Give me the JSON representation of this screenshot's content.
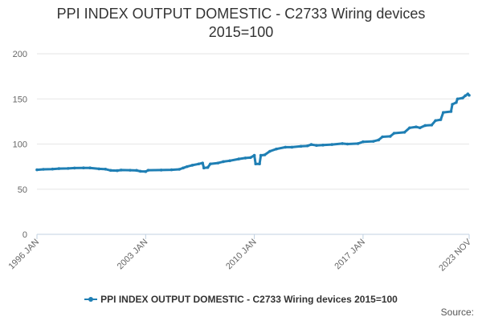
{
  "chart_data": {
    "type": "line",
    "title": "PPI INDEX OUTPUT DOMESTIC - C2733 Wiring devices",
    "subtitle": "2015=100",
    "xlabel": "",
    "ylabel": "",
    "ylim": [
      0,
      200
    ],
    "yticks": [
      0,
      50,
      100,
      150,
      200
    ],
    "xlim": [
      "1996-01",
      "2023-11"
    ],
    "xticks": [
      "1996 JAN",
      "2003 JAN",
      "2010 JAN",
      "2017 JAN",
      "2023 NOV"
    ],
    "grid": true,
    "legend_position": "bottom",
    "series": [
      {
        "name": "PPI INDEX OUTPUT DOMESTIC - C2733 Wiring devices 2015=100",
        "color": "#1f7fb4",
        "points": [
          [
            "1996-01",
            71.5
          ],
          [
            "1996-06",
            72.0
          ],
          [
            "1997-01",
            72.3
          ],
          [
            "1997-06",
            72.8
          ],
          [
            "1998-01",
            73.0
          ],
          [
            "1998-06",
            73.4
          ],
          [
            "1999-01",
            73.6
          ],
          [
            "1999-06",
            73.6
          ],
          [
            "2000-01",
            72.5
          ],
          [
            "2000-06",
            72.2
          ],
          [
            "2000-10",
            70.8
          ],
          [
            "2001-03",
            70.6
          ],
          [
            "2001-06",
            71.2
          ],
          [
            "2002-01",
            71.0
          ],
          [
            "2002-06",
            70.8
          ],
          [
            "2002-09",
            69.8
          ],
          [
            "2003-01",
            69.5
          ],
          [
            "2003-03",
            71.0
          ],
          [
            "2004-01",
            71.2
          ],
          [
            "2004-09",
            71.5
          ],
          [
            "2005-03",
            72.0
          ],
          [
            "2005-06",
            73.5
          ],
          [
            "2005-09",
            75.0
          ],
          [
            "2006-01",
            76.5
          ],
          [
            "2006-06",
            78.0
          ],
          [
            "2006-09",
            79.0
          ],
          [
            "2006-10",
            73.5
          ],
          [
            "2007-01",
            74.0
          ],
          [
            "2007-03",
            78.0
          ],
          [
            "2007-09",
            79.0
          ],
          [
            "2008-01",
            80.5
          ],
          [
            "2008-06",
            81.5
          ],
          [
            "2009-01",
            83.5
          ],
          [
            "2009-06",
            84.5
          ],
          [
            "2009-10",
            85.0
          ],
          [
            "2010-01",
            87.5
          ],
          [
            "2010-02",
            78.0
          ],
          [
            "2010-05",
            78.0
          ],
          [
            "2010-06",
            87.5
          ],
          [
            "2010-09",
            88.0
          ],
          [
            "2011-01",
            92.0
          ],
          [
            "2011-06",
            94.5
          ],
          [
            "2012-01",
            96.5
          ],
          [
            "2012-06",
            96.5
          ],
          [
            "2013-01",
            97.5
          ],
          [
            "2013-06",
            98.0
          ],
          [
            "2013-09",
            99.5
          ],
          [
            "2014-01",
            98.5
          ],
          [
            "2014-06",
            98.8
          ],
          [
            "2015-01",
            99.5
          ],
          [
            "2015-09",
            100.5
          ],
          [
            "2016-01",
            100.0
          ],
          [
            "2016-09",
            100.5
          ],
          [
            "2017-01",
            102.5
          ],
          [
            "2017-09",
            103.0
          ],
          [
            "2018-01",
            104.5
          ],
          [
            "2018-04",
            108.0
          ],
          [
            "2018-10",
            108.5
          ],
          [
            "2019-01",
            112.0
          ],
          [
            "2019-09",
            113.0
          ],
          [
            "2020-01",
            118.0
          ],
          [
            "2020-06",
            119.0
          ],
          [
            "2020-09",
            118.0
          ],
          [
            "2021-01",
            120.5
          ],
          [
            "2021-06",
            121.0
          ],
          [
            "2021-09",
            126.0
          ],
          [
            "2022-01",
            127.0
          ],
          [
            "2022-03",
            135.0
          ],
          [
            "2022-09",
            136.0
          ],
          [
            "2022-10",
            144.0
          ],
          [
            "2023-01",
            146.0
          ],
          [
            "2023-02",
            150.0
          ],
          [
            "2023-06",
            151.0
          ],
          [
            "2023-08",
            153.5
          ],
          [
            "2023-10",
            155.5
          ],
          [
            "2023-11",
            154.0
          ]
        ]
      }
    ]
  },
  "source_label": "Source:"
}
